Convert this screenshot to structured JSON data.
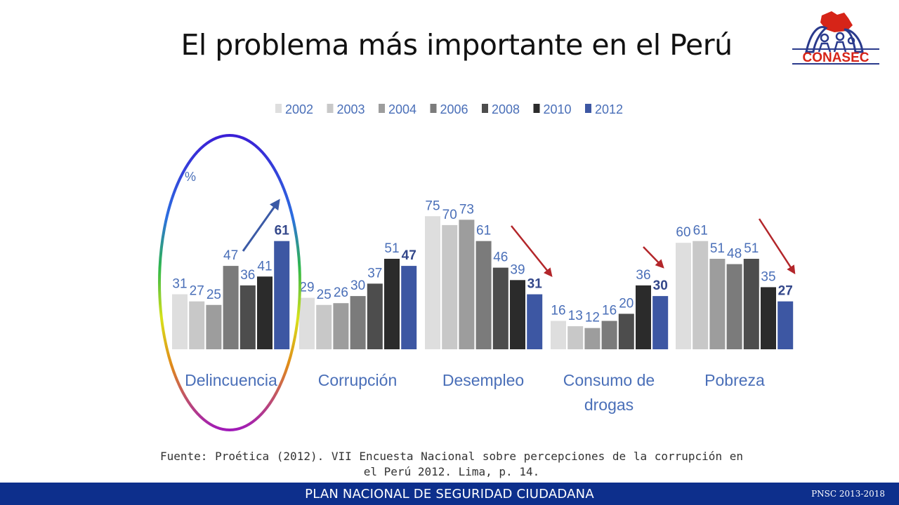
{
  "page": {
    "title": "El problema más importante en el Perú",
    "logo_text": "CONASEC",
    "source": "Fuente: Proética (2012). VII Encuesta Nacional sobre percepciones de la corrupción en el Perú 2012. Lima, p. 14.",
    "footer_title": "PLAN NACIONAL DE SEGURIDAD CIUDADANA",
    "footer_code": "PNSC 2013-2018"
  },
  "colors": {
    "footer_bg": "#0d2f8c",
    "logo_red": "#d62418",
    "logo_blue": "#2a3a8c",
    "trend_up_arrow": "#3b5aa6",
    "trend_down_arrow": "#b3262a"
  },
  "chart_data": {
    "type": "bar",
    "title": "",
    "ylabel": "%",
    "xlabel": "",
    "ylim": [
      0,
      80
    ],
    "grid": false,
    "legend_position": "top-center",
    "categories": [
      "Delincuencia",
      "Corrupción",
      "Desempleo",
      "Consumo de drogas",
      "Pobreza"
    ],
    "series": [
      {
        "name": "2002",
        "color": "#dedede",
        "values": [
          31,
          29,
          75,
          16,
          60
        ]
      },
      {
        "name": "2003",
        "color": "#c8c8c8",
        "values": [
          27,
          25,
          70,
          13,
          61
        ]
      },
      {
        "name": "2004",
        "color": "#9d9d9d",
        "values": [
          25,
          26,
          73,
          12,
          51
        ]
      },
      {
        "name": "2006",
        "color": "#7b7b7b",
        "values": [
          47,
          30,
          61,
          16,
          48
        ]
      },
      {
        "name": "2008",
        "color": "#4d4d4d",
        "values": [
          36,
          37,
          46,
          20,
          51
        ]
      },
      {
        "name": "2010",
        "color": "#2b2b2b",
        "values": [
          41,
          51,
          39,
          36,
          35
        ]
      },
      {
        "name": "2012",
        "color": "#3d57a3",
        "values": [
          61,
          47,
          31,
          30,
          27
        ]
      }
    ],
    "highlighted_category": "Delincuencia",
    "bold_series": "2012"
  }
}
